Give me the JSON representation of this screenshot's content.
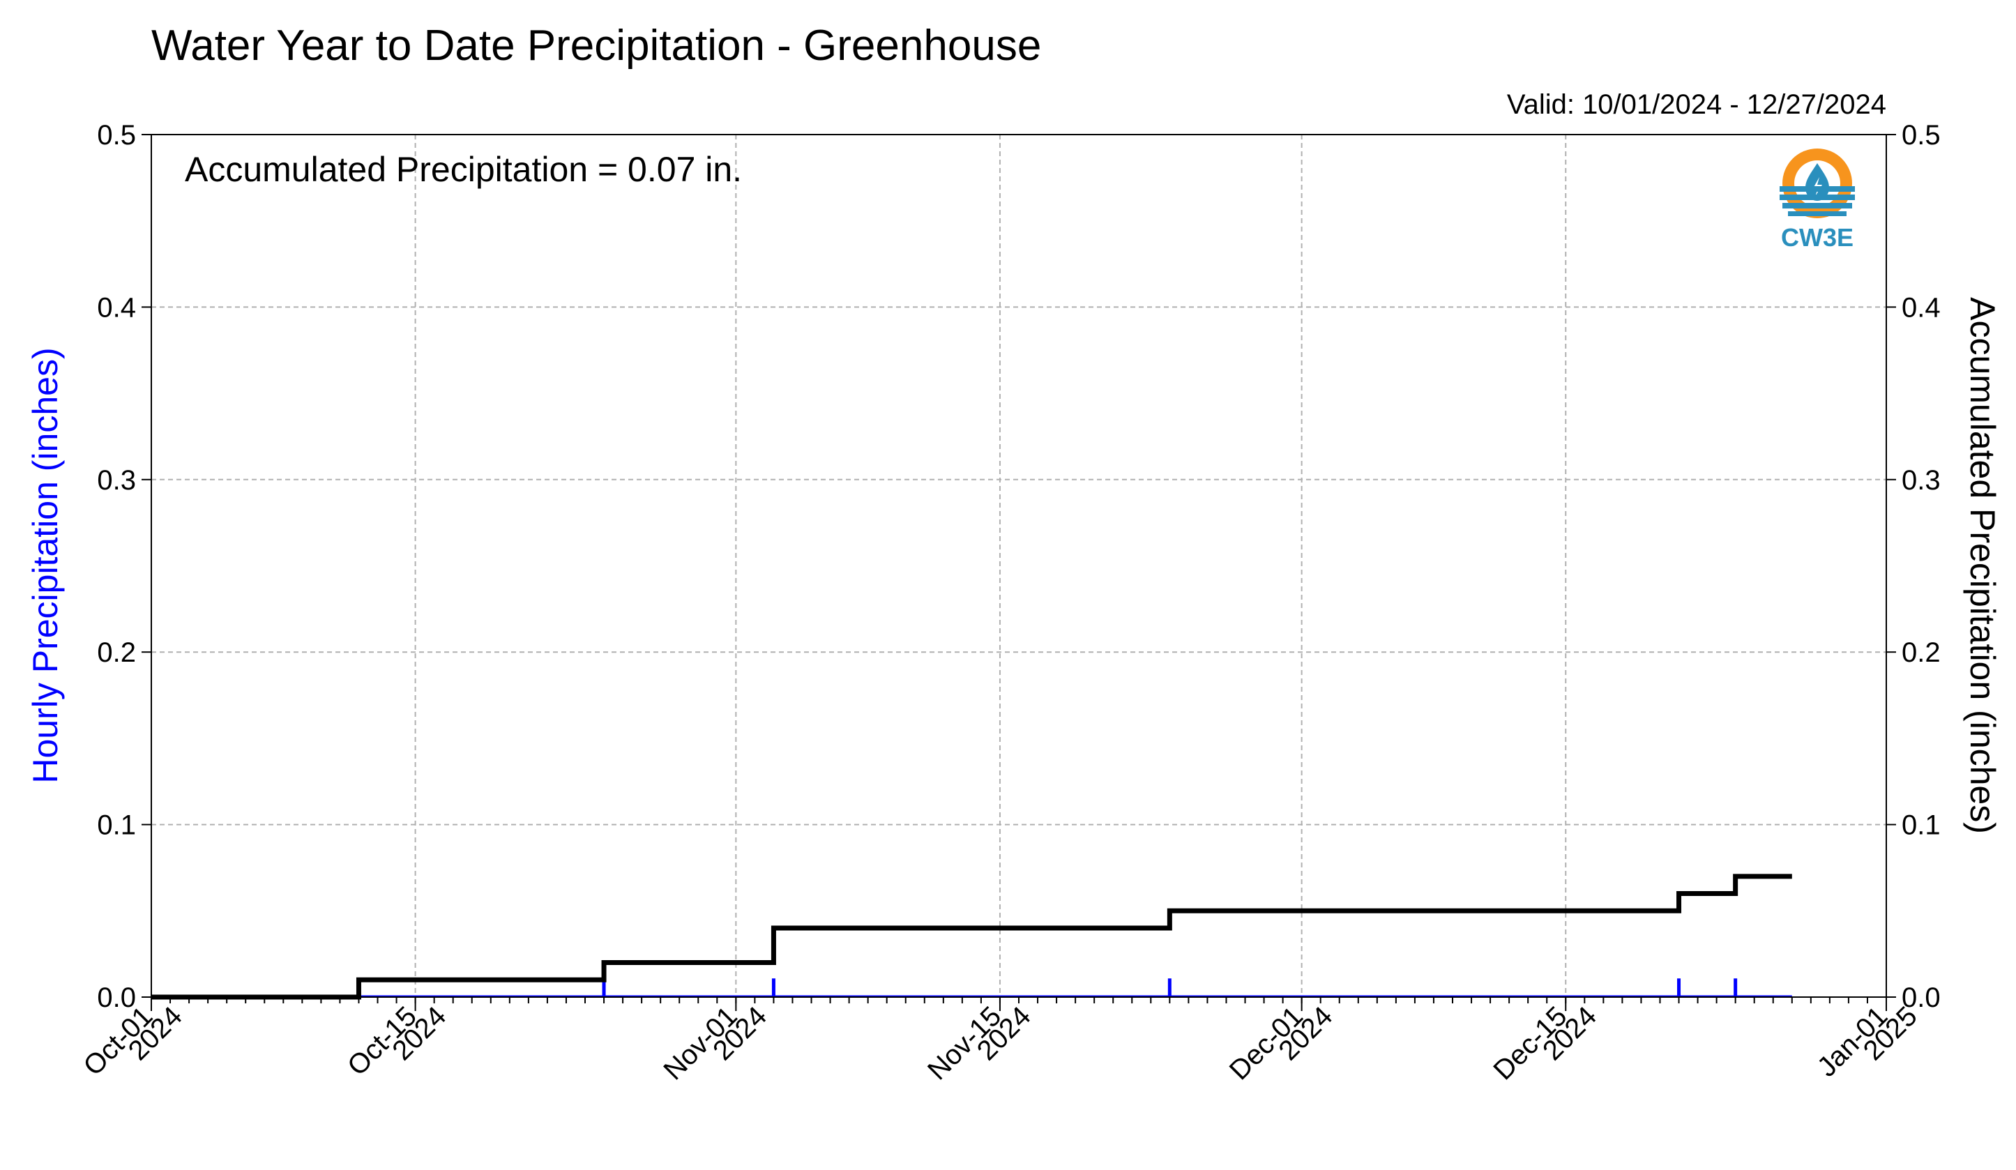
{
  "chart_data": {
    "type": "line",
    "title": "Water Year to Date Precipitation - Greenhouse",
    "valid_label": "Valid: 10/01/2024 - 12/27/2024",
    "annotation": "Accumulated Precipitation = 0.07 in.",
    "ylabel_left": "Hourly Precipitation (inches)",
    "ylabel_right": "Accumulated Precipitation (inches)",
    "ylim": [
      0,
      0.5
    ],
    "yticks": [
      "0.0",
      "0.1",
      "0.2",
      "0.3",
      "0.4",
      "0.5"
    ],
    "xlim": [
      "2024-10-01",
      "2025-01-01"
    ],
    "xticks": [
      {
        "date": "2024-10-01",
        "line1": "Oct-01",
        "line2": "2024"
      },
      {
        "date": "2024-10-15",
        "line1": "Oct-15",
        "line2": "2024"
      },
      {
        "date": "2024-11-01",
        "line1": "Nov-01",
        "line2": "2024"
      },
      {
        "date": "2024-11-15",
        "line1": "Nov-15",
        "line2": "2024"
      },
      {
        "date": "2024-12-01",
        "line1": "Dec-01",
        "line2": "2024"
      },
      {
        "date": "2024-12-15",
        "line1": "Dec-15",
        "line2": "2024"
      },
      {
        "date": "2025-01-01",
        "line1": "Jan-01",
        "line2": "2025"
      }
    ],
    "grid": true,
    "series": [
      {
        "name": "",
        "kind": "bar",
        "color": "#0000ff",
        "axis": "left",
        "x": [
          "2024-10-12",
          "2024-10-25",
          "2024-11-03",
          "2024-11-24",
          "2024-12-21",
          "2024-12-24"
        ],
        "values": [
          0.01,
          0.01,
          0.01,
          0.01,
          0.01,
          0.01
        ]
      },
      {
        "name": "",
        "kind": "step",
        "color": "#000000",
        "axis": "right",
        "x": [
          "2024-10-01",
          "2024-10-12",
          "2024-10-25",
          "2024-11-03",
          "2024-11-24",
          "2024-12-21",
          "2024-12-24",
          "2024-12-27"
        ],
        "values": [
          0.0,
          0.01,
          0.02,
          0.04,
          0.05,
          0.06,
          0.07,
          0.07
        ]
      }
    ]
  },
  "logo": {
    "text": "CW3E",
    "ring_color": "#f7941d",
    "water_color": "#2a8fbd",
    "text_color": "#2a8fbd"
  }
}
